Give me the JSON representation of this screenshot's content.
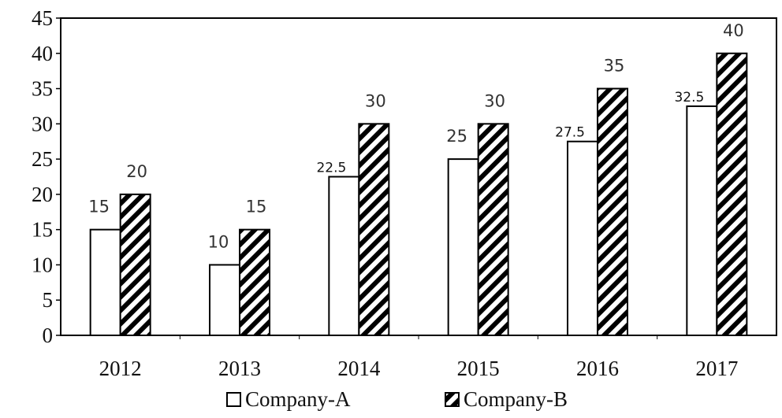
{
  "chart_data": {
    "type": "bar",
    "categories": [
      "2012",
      "2013",
      "2014",
      "2015",
      "2016",
      "2017"
    ],
    "series": [
      {
        "name": "Company-A",
        "values": [
          15,
          10,
          22.5,
          25,
          27.5,
          32.5
        ],
        "labels": [
          "15",
          "10",
          "22.5",
          "25",
          "27.5",
          "32.5"
        ],
        "fill": "#ffffff",
        "pattern": "none"
      },
      {
        "name": "Company-B",
        "values": [
          20,
          15,
          30,
          30,
          35,
          40
        ],
        "labels": [
          "20",
          "15",
          "30",
          "30",
          "35",
          "40"
        ],
        "fill": "#000000",
        "pattern": "diagonal-hatch"
      }
    ],
    "ylim": [
      0,
      45
    ],
    "yticks": [
      "0",
      "5",
      "10",
      "15",
      "20",
      "25",
      "30",
      "35",
      "40",
      "45"
    ],
    "title": "",
    "xlabel": "",
    "ylabel": "",
    "grid": false,
    "legend": "bottom-center"
  }
}
